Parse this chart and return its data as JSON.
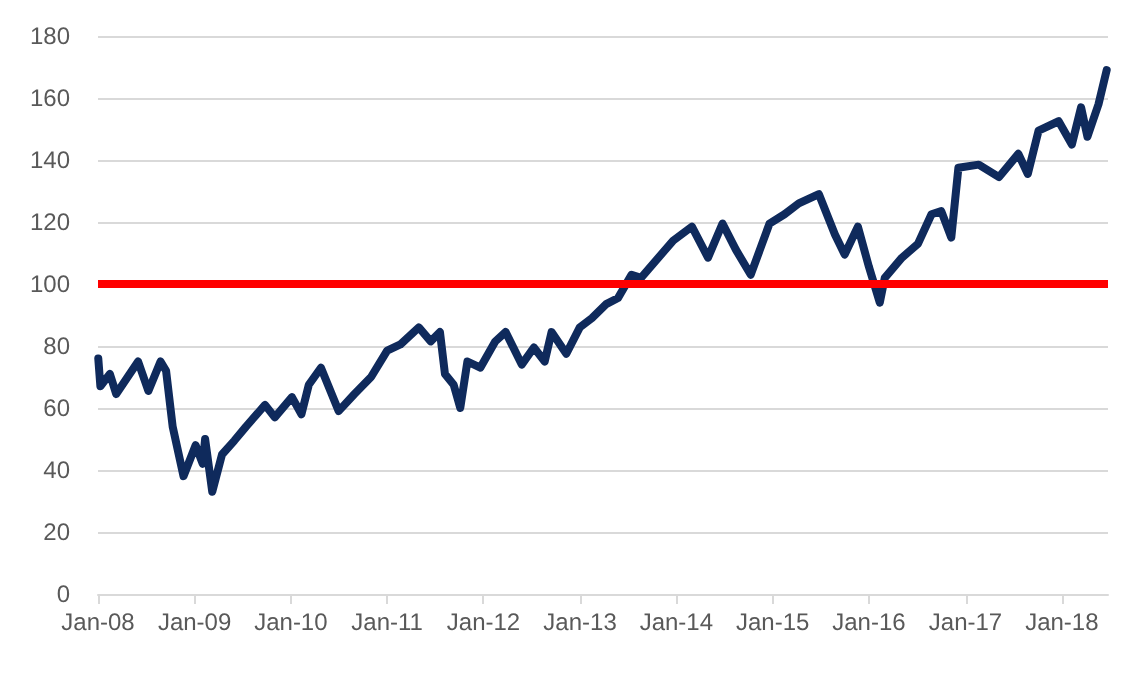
{
  "chart_data": {
    "type": "line",
    "x": [
      "2008-01-02",
      "2008-01-10",
      "2008-02-15",
      "2008-03-10",
      "2008-06-01",
      "2008-07-10",
      "2008-08-25",
      "2008-09-15",
      "2008-10-10",
      "2008-11-20",
      "2009-01-05",
      "2009-02-01",
      "2009-02-10",
      "2009-03-09",
      "2009-04-15",
      "2009-06-01",
      "2009-07-15",
      "2009-09-25",
      "2009-11-01",
      "2010-01-05",
      "2010-02-10",
      "2010-03-10",
      "2010-04-25",
      "2010-07-01",
      "2010-08-30",
      "2010-11-01",
      "2011-01-01",
      "2011-02-20",
      "2011-05-01",
      "2011-06-15",
      "2011-07-20",
      "2011-08-08",
      "2011-09-10",
      "2011-10-05",
      "2011-11-01",
      "2011-12-20",
      "2012-02-15",
      "2012-03-25",
      "2012-05-25",
      "2012-07-10",
      "2012-08-20",
      "2012-09-15",
      "2012-11-10",
      "2012-12-31",
      "2013-02-15",
      "2013-04-10",
      "2013-05-25",
      "2013-07-15",
      "2013-08-20",
      "2013-12-20",
      "2014-03-01",
      "2014-05-01",
      "2014-06-25",
      "2014-08-15",
      "2014-10-10",
      "2014-12-20",
      "2015-02-15",
      "2015-04-10",
      "2015-06-25",
      "2015-08-25",
      "2015-10-01",
      "2015-11-20",
      "2016-01-01",
      "2016-02-11",
      "2016-03-01",
      "2016-05-05",
      "2016-07-05",
      "2016-08-25",
      "2016-10-01",
      "2016-11-08",
      "2016-12-05",
      "2017-02-20",
      "2017-05-08",
      "2017-07-20",
      "2017-08-25",
      "2017-10-05",
      "2017-12-20",
      "2018-02-08",
      "2018-03-15",
      "2018-04-08",
      "2018-05-20",
      "2018-06-20"
    ],
    "series": [
      {
        "color": "#0f2a5c",
        "values": [
          76,
          67,
          71,
          64.5,
          75,
          65.5,
          75,
          72,
          54,
          38,
          48,
          42,
          50,
          33,
          45,
          49.5,
          54,
          61,
          57,
          63.5,
          58,
          67.5,
          73,
          59,
          64.5,
          70,
          78.5,
          80.5,
          86,
          81.5,
          84.5,
          71,
          67.5,
          60,
          75,
          73,
          81.5,
          84.5,
          74,
          79.5,
          75,
          84.5,
          77.5,
          86,
          89,
          93.5,
          95.5,
          103,
          102,
          114,
          118.5,
          108.5,
          119.5,
          111,
          103,
          119.5,
          122.5,
          126,
          129,
          116,
          109.5,
          118.5,
          105.5,
          94,
          102,
          108.5,
          113,
          122.5,
          123.5,
          115,
          137.5,
          138.5,
          134.5,
          142,
          135.5,
          149.5,
          152.5,
          145,
          157,
          147.5,
          158,
          169
        ]
      }
    ],
    "xlim": [
      "2008-01-01",
      "2018-06-25"
    ],
    "xticks": [
      {
        "value": "2008-01-01",
        "label": "Jan-08"
      },
      {
        "value": "2009-01-01",
        "label": "Jan-09"
      },
      {
        "value": "2010-01-01",
        "label": "Jan-10"
      },
      {
        "value": "2011-01-01",
        "label": "Jan-11"
      },
      {
        "value": "2012-01-01",
        "label": "Jan-12"
      },
      {
        "value": "2013-01-01",
        "label": "Jan-13"
      },
      {
        "value": "2014-01-01",
        "label": "Jan-14"
      },
      {
        "value": "2015-01-01",
        "label": "Jan-15"
      },
      {
        "value": "2016-01-01",
        "label": "Jan-16"
      },
      {
        "value": "2017-01-01",
        "label": "Jan-17"
      },
      {
        "value": "2018-01-01",
        "label": "Jan-18"
      }
    ],
    "ylim": [
      0,
      180
    ],
    "yticks": [
      0,
      20,
      40,
      60,
      80,
      100,
      120,
      140,
      160,
      180
    ],
    "ref_lines": [
      {
        "axis": "y",
        "value": 100,
        "color": "#ff0000",
        "line_style": "solid"
      }
    ],
    "grid": "y",
    "marker": "none",
    "line_style": "solid"
  }
}
